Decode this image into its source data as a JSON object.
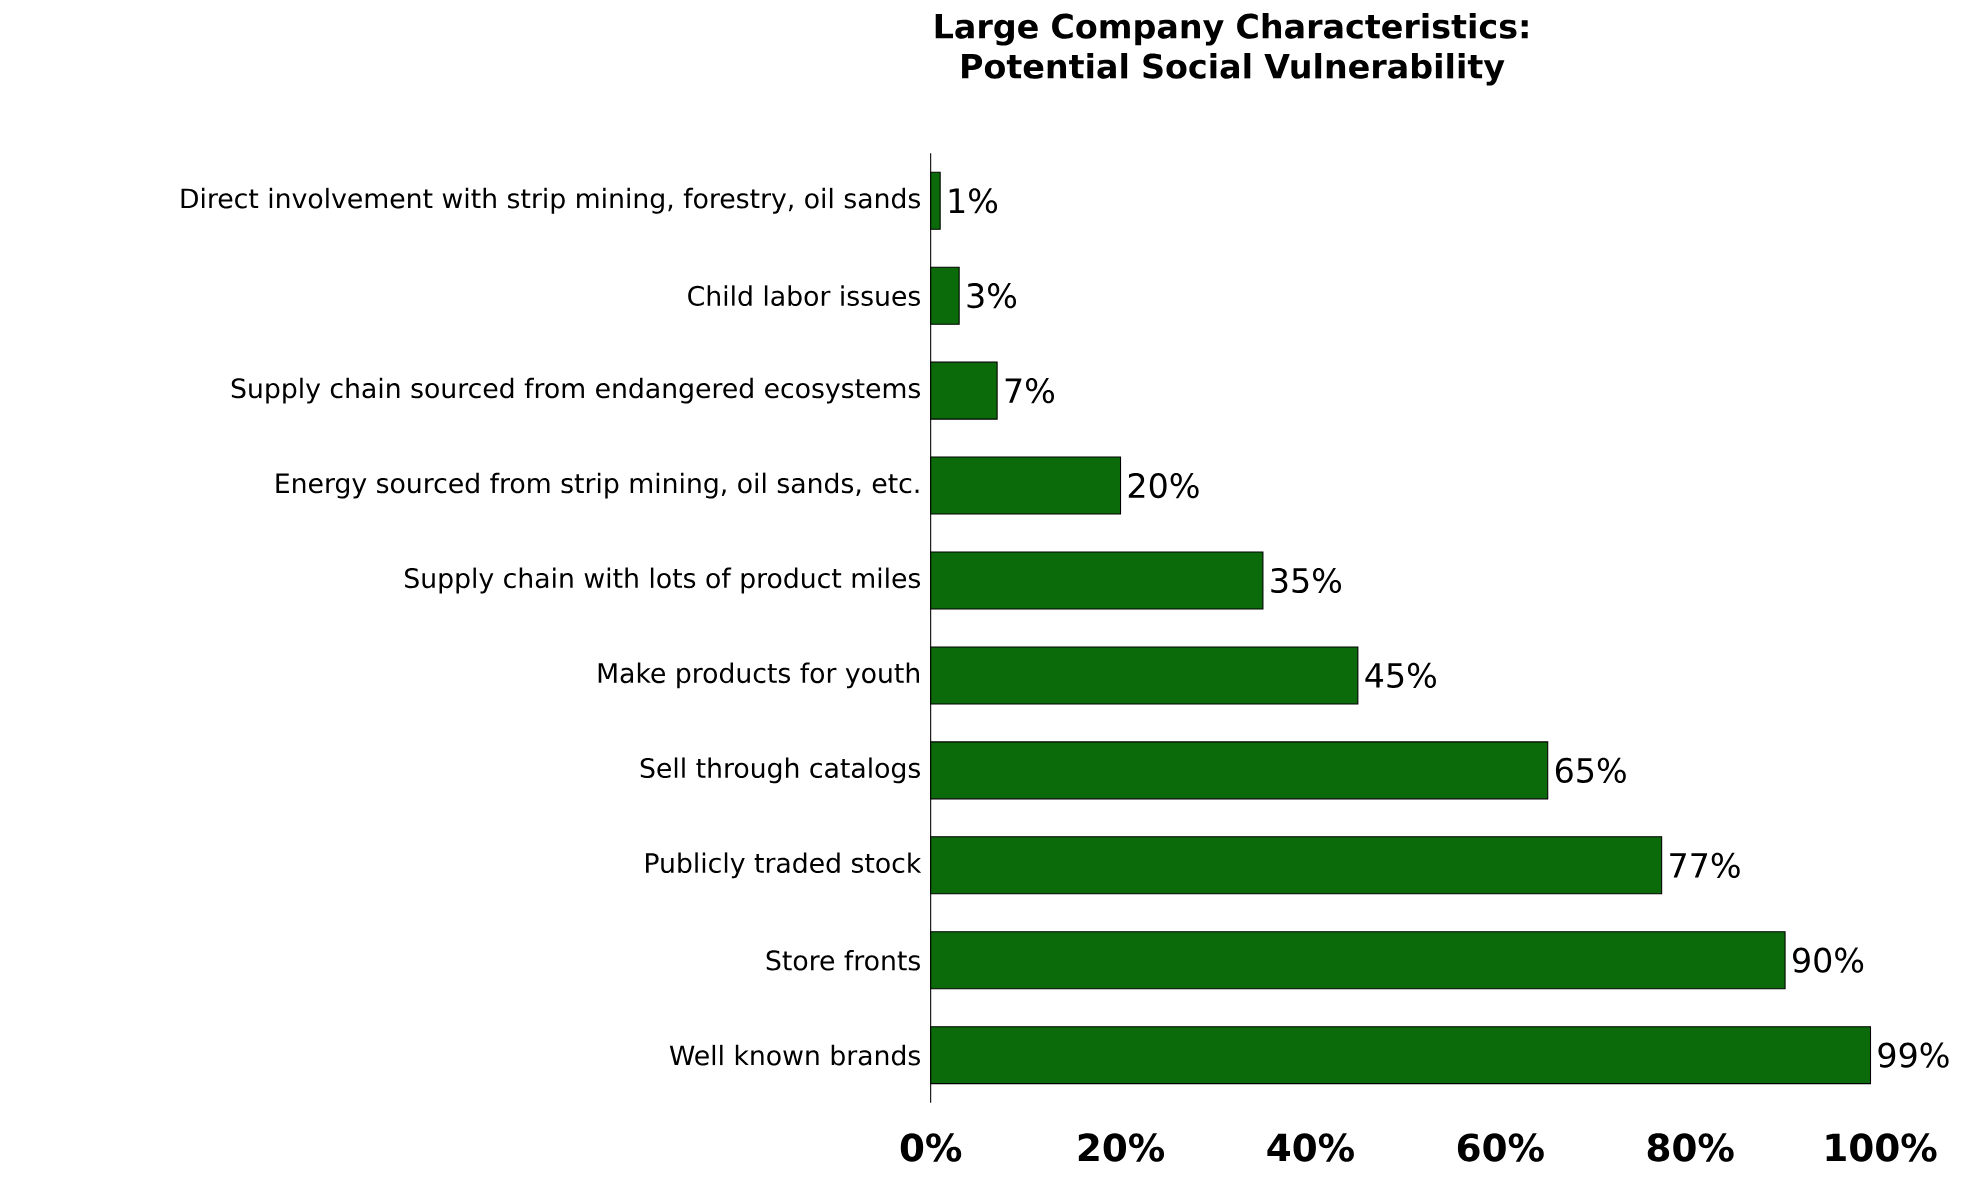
{
  "chart_data": {
    "type": "bar",
    "orientation": "horizontal",
    "title": "Large Company Characteristics: Potential Social Vulnerability",
    "categories": [
      "Direct involvement with strip mining, forestry, oil sands",
      "Child labor issues",
      "Supply chain sourced from endangered ecosystems",
      "Energy sourced from strip mining, oil sands, etc.",
      "Supply chain with lots of product miles",
      "Make products for youth",
      "Sell through catalogs",
      "Publicly traded stock",
      "Store fronts",
      "Well known brands"
    ],
    "values": [
      1,
      3,
      7,
      20,
      35,
      45,
      65,
      77,
      90,
      99
    ],
    "value_labels": [
      "1%",
      "3%",
      "7%",
      "20%",
      "35%",
      "45%",
      "65%",
      "77%",
      "90%",
      "99%"
    ],
    "color": "#0b6b0b",
    "xlim": [
      0,
      100
    ],
    "xticks": [
      {
        "value": 0,
        "label": "0%"
      },
      {
        "value": 20,
        "label": "20%"
      },
      {
        "value": 40,
        "label": "40%"
      },
      {
        "value": 60,
        "label": "60%"
      },
      {
        "value": 80,
        "label": "80%"
      },
      {
        "value": 100,
        "label": "100%"
      }
    ]
  }
}
